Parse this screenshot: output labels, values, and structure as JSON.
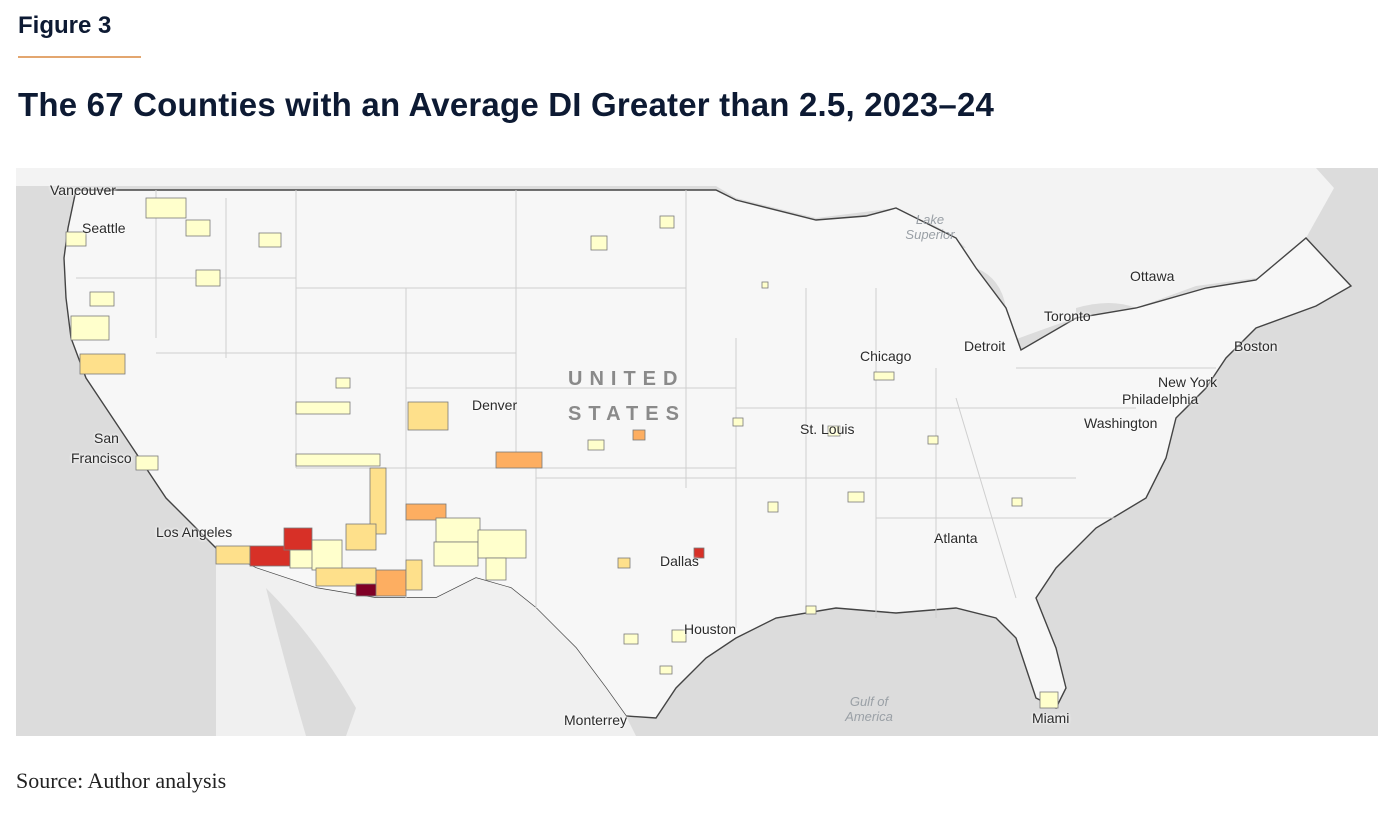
{
  "figure_label": "Figure 3",
  "title": "The 67 Counties with an Average DI Greater than 2.5, 2023–24",
  "source": "Source: Author analysis",
  "map": {
    "country_label": [
      "UNITED",
      "STATES"
    ],
    "cities": {
      "vancouver": "Vancouver",
      "seattle": "Seattle",
      "san_francisco_1": "San",
      "san_francisco_2": "Francisco",
      "los_angeles": "Los Angeles",
      "denver": "Denver",
      "dallas": "Dallas",
      "houston": "Houston",
      "monterrey": "Monterrey",
      "st_louis": "St. Louis",
      "chicago": "Chicago",
      "detroit": "Detroit",
      "toronto": "Toronto",
      "ottawa": "Ottawa",
      "boston": "Boston",
      "new_york": "New York",
      "philadelphia": "Philadelphia",
      "washington": "Washington",
      "atlanta": "Atlanta",
      "miami": "Miami"
    },
    "water": {
      "lake_superior_1": "Lake",
      "lake_superior_2": "Superior",
      "gulf_1": "Gulf of",
      "gulf_2": "America"
    },
    "colors": {
      "land": "#f5f5f5",
      "water": "#dcdcdc",
      "level_1": "#ffffcc",
      "level_2": "#fee08b",
      "level_3": "#fdae61",
      "level_4": "#f46d43",
      "level_5": "#d73027",
      "level_6": "#800026"
    }
  }
}
